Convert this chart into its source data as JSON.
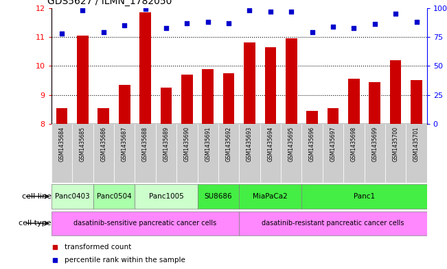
{
  "title": "GDS5627 / ILMN_1782050",
  "samples": [
    "GSM1435684",
    "GSM1435685",
    "GSM1435686",
    "GSM1435687",
    "GSM1435688",
    "GSM1435689",
    "GSM1435690",
    "GSM1435691",
    "GSM1435692",
    "GSM1435693",
    "GSM1435694",
    "GSM1435695",
    "GSM1435696",
    "GSM1435697",
    "GSM1435698",
    "GSM1435699",
    "GSM1435700",
    "GSM1435701"
  ],
  "bar_values": [
    8.55,
    11.05,
    8.55,
    9.35,
    11.85,
    9.25,
    9.7,
    9.9,
    9.75,
    10.8,
    10.65,
    10.95,
    8.45,
    8.55,
    9.55,
    9.45,
    10.2,
    9.5
  ],
  "dot_values": [
    78,
    98,
    79,
    85,
    99,
    83,
    87,
    88,
    87,
    98,
    97,
    97,
    79,
    84,
    83,
    86,
    95,
    88
  ],
  "ylim_left": [
    8,
    12
  ],
  "ylim_right": [
    0,
    100
  ],
  "yticks_left": [
    8,
    9,
    10,
    11,
    12
  ],
  "yticks_right": [
    0,
    25,
    50,
    75,
    100
  ],
  "bar_color": "#CC0000",
  "dot_color": "#0000CC",
  "cell_line_per_sample": [
    "Panc0403",
    "Panc0403",
    "Panc0504",
    "Panc0504",
    "Panc1005",
    "Panc1005",
    "Panc1005",
    "SU8686",
    "SU8686",
    "MiaPaCa2",
    "MiaPaCa2",
    "MiaPaCa2",
    "Panc1",
    "Panc1",
    "Panc1",
    "Panc1",
    "Panc1",
    "Panc1"
  ],
  "cell_line_colors": {
    "Panc0403": "#ccffcc",
    "Panc0504": "#aaffaa",
    "Panc1005": "#ccffcc",
    "SU8686": "#44ee44",
    "MiaPaCa2": "#44ee44",
    "Panc1": "#44ee44"
  },
  "cell_type_per_sample": [
    "sensitive",
    "sensitive",
    "sensitive",
    "sensitive",
    "sensitive",
    "sensitive",
    "sensitive",
    "sensitive",
    "sensitive",
    "resistant",
    "resistant",
    "resistant",
    "resistant",
    "resistant",
    "resistant",
    "resistant",
    "resistant",
    "resistant"
  ],
  "cell_type_labels": {
    "sensitive": "dasatinib-sensitive pancreatic cancer cells",
    "resistant": "dasatinib-resistant pancreatic cancer cells"
  },
  "cell_type_color": "#ff88ff",
  "sample_bg_color": "#cccccc",
  "legend_bar_label": "transformed count",
  "legend_dot_label": "percentile rank within the sample"
}
